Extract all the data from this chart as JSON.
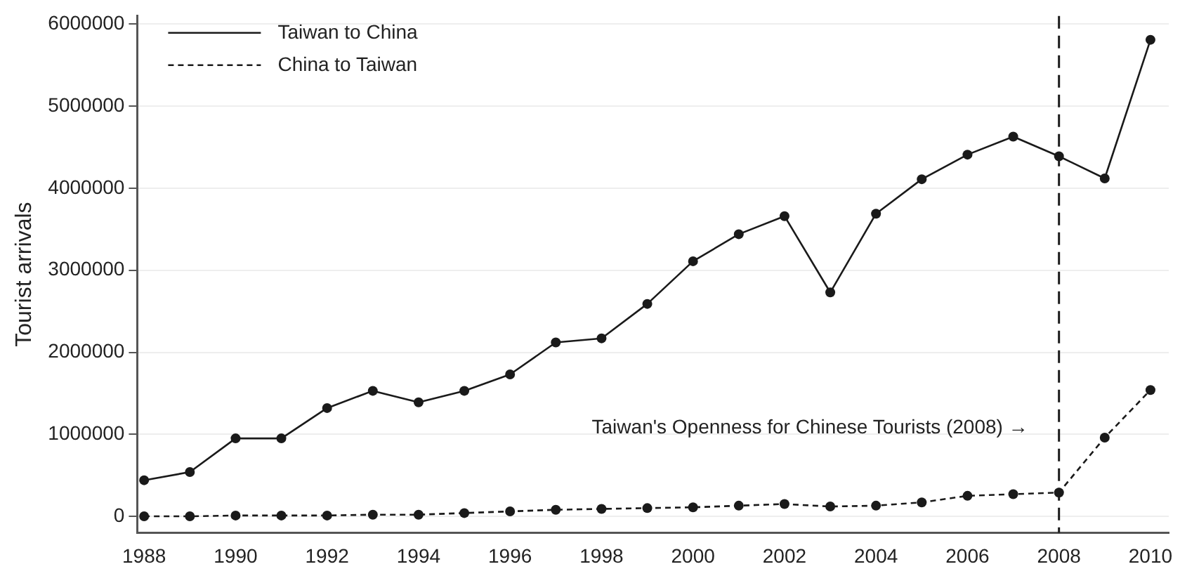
{
  "chart_data": {
    "type": "line",
    "ylabel": "Tourist arrivals",
    "x": [
      1988,
      1989,
      1990,
      1991,
      1992,
      1993,
      1994,
      1995,
      1996,
      1997,
      1998,
      1999,
      2000,
      2001,
      2002,
      2003,
      2004,
      2005,
      2006,
      2007,
      2008,
      2009,
      2010
    ],
    "series": [
      {
        "name": "Taiwan to China",
        "color": "#1a1a1a",
        "line_style": "solid",
        "values": [
          440000,
          540000,
          950000,
          950000,
          1320000,
          1530000,
          1390000,
          1530000,
          1730000,
          2120000,
          2170000,
          2590000,
          3110000,
          3440000,
          3660000,
          2730000,
          3690000,
          4110000,
          4410000,
          4630000,
          4390000,
          4120000,
          5810000
        ]
      },
      {
        "name": "China to Taiwan",
        "color": "#1a1a1a",
        "line_style": "dashed",
        "values": [
          0,
          0,
          10000,
          10000,
          10000,
          20000,
          20000,
          40000,
          60000,
          80000,
          90000,
          100000,
          110000,
          130000,
          150000,
          120000,
          130000,
          170000,
          250000,
          270000,
          290000,
          960000,
          1540000
        ]
      }
    ],
    "marker": "circle",
    "xlim": [
      1987.85,
      2010.4
    ],
    "xticks": [
      1988,
      1990,
      1992,
      1994,
      1996,
      1998,
      2000,
      2002,
      2004,
      2006,
      2008,
      2010
    ],
    "ylim": [
      -200000,
      6100000
    ],
    "yticks": [
      0,
      1000000,
      2000000,
      3000000,
      4000000,
      5000000,
      6000000
    ],
    "grid": "y",
    "legend": "top left",
    "ref_lines": [
      {
        "axis": "x",
        "value": 2008,
        "line_style": "dashed",
        "color": "#1a1a1a"
      }
    ],
    "annotations": [
      {
        "text": "Taiwan's Openness for Chinese Tourists (2008) →",
        "x": 2008,
        "y": 1080000
      }
    ]
  }
}
